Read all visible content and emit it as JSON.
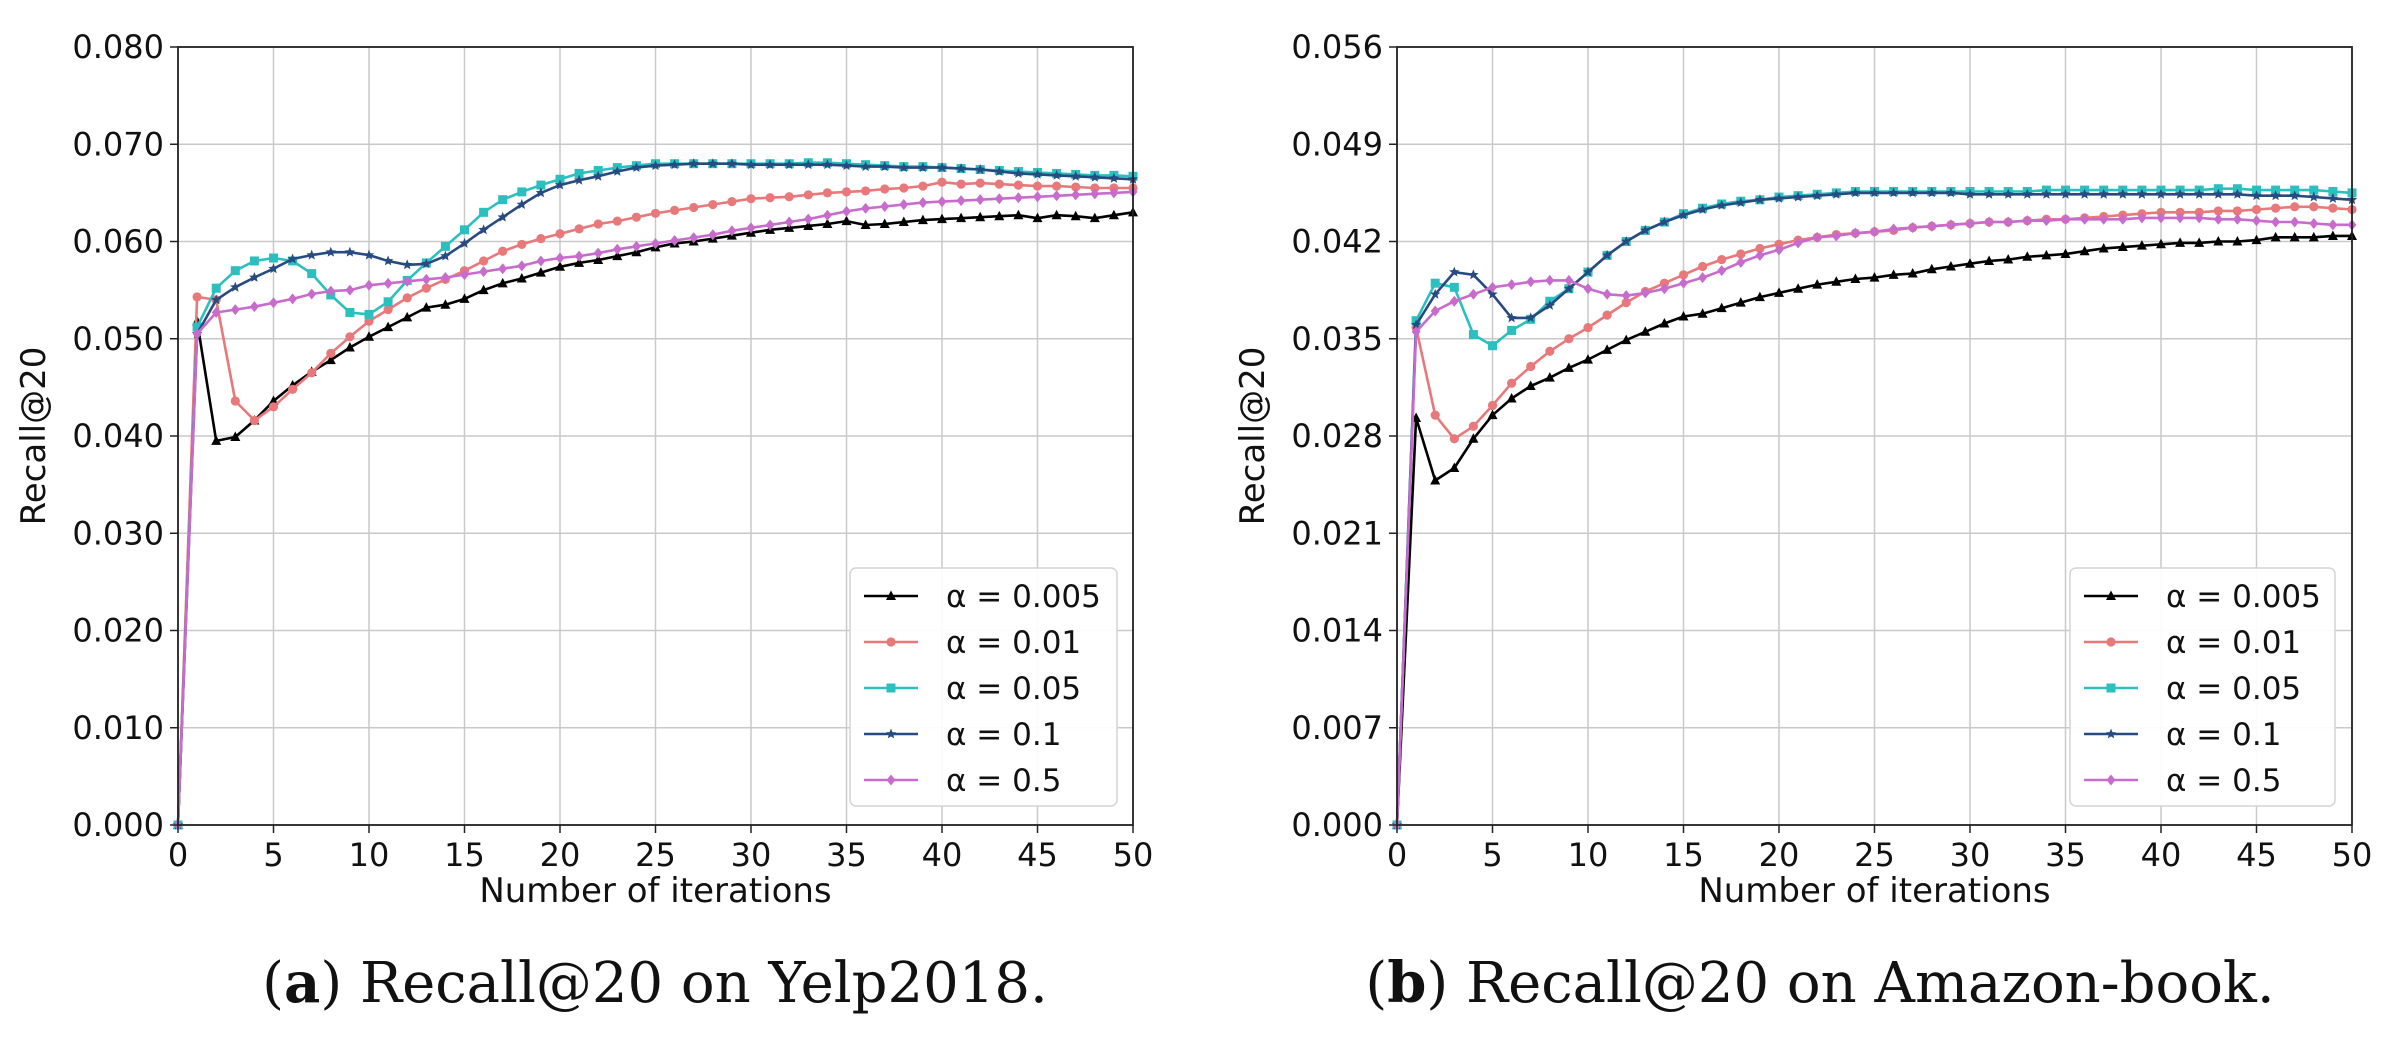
{
  "chart_data": [
    {
      "type": "line",
      "caption_letter": "a",
      "caption_text": "Recall@20 on Yelp2018.",
      "xlabel": "Number of iterations",
      "ylabel": "Recall@20",
      "xlim": [
        0,
        50
      ],
      "ylim": [
        0,
        0.08
      ],
      "xticks": [
        "0",
        "5",
        "10",
        "15",
        "20",
        "25",
        "30",
        "35",
        "40",
        "45",
        "50"
      ],
      "yticks": [
        "0.000",
        "0.010",
        "0.020",
        "0.030",
        "0.040",
        "0.050",
        "0.060",
        "0.070",
        "0.080"
      ],
      "grid": true,
      "legend_position": "lower-right",
      "series": [
        {
          "name": "α = 0.005",
          "color": "#000000",
          "marker": "triangle",
          "values": [
            0.0,
            0.0518,
            0.0395,
            0.0399,
            0.0416,
            0.0436,
            0.0452,
            0.0466,
            0.0478,
            0.0491,
            0.0502,
            0.0512,
            0.0522,
            0.0532,
            0.0535,
            0.0541,
            0.055,
            0.0557,
            0.0562,
            0.0568,
            0.0574,
            0.0578,
            0.0581,
            0.0585,
            0.0589,
            0.0594,
            0.0598,
            0.06,
            0.0603,
            0.0606,
            0.0609,
            0.0612,
            0.0614,
            0.0616,
            0.0618,
            0.0621,
            0.0617,
            0.0618,
            0.062,
            0.0622,
            0.0623,
            0.0624,
            0.0625,
            0.0626,
            0.0627,
            0.0624,
            0.0627,
            0.0626,
            0.0624,
            0.0627,
            0.063
          ]
        },
        {
          "name": "α = 0.01",
          "color": "#e8787a",
          "marker": "circle",
          "values": [
            0.0,
            0.0543,
            0.054,
            0.0436,
            0.0416,
            0.043,
            0.0448,
            0.0465,
            0.0485,
            0.0502,
            0.0518,
            0.053,
            0.0542,
            0.0552,
            0.0561,
            0.057,
            0.058,
            0.059,
            0.0597,
            0.0603,
            0.0608,
            0.0613,
            0.0618,
            0.0621,
            0.0625,
            0.0629,
            0.0632,
            0.0635,
            0.0638,
            0.0641,
            0.0644,
            0.0645,
            0.0646,
            0.0648,
            0.065,
            0.0651,
            0.0652,
            0.0654,
            0.0655,
            0.0657,
            0.0661,
            0.0659,
            0.066,
            0.0659,
            0.0658,
            0.0657,
            0.0657,
            0.0656,
            0.0655,
            0.0655,
            0.0655
          ]
        },
        {
          "name": "α = 0.05",
          "color": "#2bbfbf",
          "marker": "square",
          "values": [
            0.0,
            0.0512,
            0.0552,
            0.057,
            0.058,
            0.0583,
            0.058,
            0.0567,
            0.0545,
            0.0527,
            0.0525,
            0.0538,
            0.056,
            0.0578,
            0.0595,
            0.0612,
            0.063,
            0.0643,
            0.0651,
            0.0658,
            0.0664,
            0.067,
            0.0673,
            0.0676,
            0.0678,
            0.068,
            0.068,
            0.068,
            0.068,
            0.068,
            0.068,
            0.068,
            0.068,
            0.0681,
            0.0681,
            0.068,
            0.0679,
            0.0678,
            0.0677,
            0.0677,
            0.0676,
            0.0675,
            0.0674,
            0.0673,
            0.0672,
            0.0671,
            0.067,
            0.0669,
            0.0668,
            0.0668,
            0.0667
          ]
        },
        {
          "name": "α = 0.1",
          "color": "#274b80",
          "marker": "star",
          "values": [
            0.0,
            0.0505,
            0.054,
            0.0553,
            0.0563,
            0.0572,
            0.0582,
            0.0586,
            0.0589,
            0.0589,
            0.0586,
            0.058,
            0.0576,
            0.0577,
            0.0585,
            0.0598,
            0.0612,
            0.0625,
            0.0638,
            0.065,
            0.0658,
            0.0663,
            0.0667,
            0.0672,
            0.0676,
            0.0678,
            0.0679,
            0.068,
            0.068,
            0.068,
            0.0679,
            0.0679,
            0.0679,
            0.0679,
            0.0679,
            0.0678,
            0.0677,
            0.0677,
            0.0676,
            0.0676,
            0.0676,
            0.0675,
            0.0674,
            0.0672,
            0.067,
            0.0669,
            0.0668,
            0.0667,
            0.0666,
            0.0665,
            0.0664
          ]
        },
        {
          "name": "α = 0.5",
          "color": "#c76ccc",
          "marker": "diamond",
          "values": [
            0.0,
            0.0505,
            0.0527,
            0.053,
            0.0533,
            0.0537,
            0.0541,
            0.0546,
            0.0549,
            0.055,
            0.0555,
            0.0557,
            0.0559,
            0.0561,
            0.0563,
            0.0566,
            0.0569,
            0.0572,
            0.0575,
            0.058,
            0.0583,
            0.0585,
            0.0588,
            0.0592,
            0.0595,
            0.0598,
            0.0601,
            0.0604,
            0.0607,
            0.0611,
            0.0614,
            0.0617,
            0.062,
            0.0623,
            0.0627,
            0.0631,
            0.0634,
            0.0636,
            0.0638,
            0.064,
            0.0641,
            0.0642,
            0.0643,
            0.0644,
            0.0645,
            0.0646,
            0.0647,
            0.0648,
            0.0649,
            0.065,
            0.0651
          ]
        }
      ]
    },
    {
      "type": "line",
      "caption_letter": "b",
      "caption_text": "Recall@20 on Amazon-book.",
      "xlabel": "Number of iterations",
      "ylabel": "Recall@20",
      "xlim": [
        0,
        50
      ],
      "ylim": [
        0,
        0.056
      ],
      "xticks": [
        "0",
        "5",
        "10",
        "15",
        "20",
        "25",
        "30",
        "35",
        "40",
        "45",
        "50"
      ],
      "yticks": [
        "0.000",
        "0.007",
        "0.014",
        "0.021",
        "0.028",
        "0.035",
        "0.042",
        "0.049",
        "0.056"
      ],
      "grid": true,
      "legend_position": "lower-right",
      "series": [
        {
          "name": "α = 0.005",
          "color": "#000000",
          "marker": "triangle",
          "values": [
            0.0,
            0.0293,
            0.0248,
            0.0257,
            0.0278,
            0.0295,
            0.0307,
            0.0316,
            0.0322,
            0.0329,
            0.0335,
            0.0342,
            0.0349,
            0.0355,
            0.0361,
            0.0366,
            0.0368,
            0.0372,
            0.0376,
            0.038,
            0.0383,
            0.0386,
            0.0389,
            0.0391,
            0.0393,
            0.0394,
            0.0396,
            0.0397,
            0.04,
            0.0402,
            0.0404,
            0.0406,
            0.0407,
            0.0409,
            0.041,
            0.0411,
            0.0413,
            0.0415,
            0.0416,
            0.0417,
            0.0418,
            0.0419,
            0.0419,
            0.042,
            0.042,
            0.0421,
            0.0423,
            0.0423,
            0.0423,
            0.0424,
            0.0424
          ]
        },
        {
          "name": "α = 0.01",
          "color": "#e8787a",
          "marker": "circle",
          "values": [
            0.0,
            0.0358,
            0.0295,
            0.0278,
            0.0287,
            0.0302,
            0.0318,
            0.033,
            0.0341,
            0.035,
            0.0358,
            0.0367,
            0.0376,
            0.0384,
            0.039,
            0.0396,
            0.0402,
            0.0407,
            0.0411,
            0.0415,
            0.0418,
            0.0421,
            0.0423,
            0.0425,
            0.0426,
            0.0427,
            0.0428,
            0.043,
            0.0431,
            0.0432,
            0.0433,
            0.0434,
            0.0434,
            0.0435,
            0.0436,
            0.0436,
            0.0437,
            0.0438,
            0.0439,
            0.044,
            0.0441,
            0.0441,
            0.0441,
            0.0442,
            0.0442,
            0.0443,
            0.0444,
            0.0445,
            0.0445,
            0.0444,
            0.0443
          ]
        },
        {
          "name": "α = 0.05",
          "color": "#2bbfbf",
          "marker": "square",
          "values": [
            0.0,
            0.0363,
            0.039,
            0.0387,
            0.0353,
            0.0345,
            0.0356,
            0.0364,
            0.0377,
            0.0386,
            0.0398,
            0.041,
            0.042,
            0.0428,
            0.0434,
            0.044,
            0.0444,
            0.0447,
            0.0449,
            0.045,
            0.0452,
            0.0453,
            0.0454,
            0.0455,
            0.0456,
            0.0456,
            0.0456,
            0.0456,
            0.0456,
            0.0456,
            0.0456,
            0.0456,
            0.0456,
            0.0456,
            0.0457,
            0.0457,
            0.0457,
            0.0457,
            0.0457,
            0.0457,
            0.0457,
            0.0457,
            0.0457,
            0.0458,
            0.0458,
            0.0457,
            0.0457,
            0.0457,
            0.0457,
            0.0456,
            0.0455
          ]
        },
        {
          "name": "α = 0.1",
          "color": "#274b80",
          "marker": "star",
          "values": [
            0.0,
            0.036,
            0.0382,
            0.0398,
            0.0396,
            0.0382,
            0.0365,
            0.0365,
            0.0374,
            0.0386,
            0.0398,
            0.041,
            0.042,
            0.0428,
            0.0434,
            0.0439,
            0.0443,
            0.0446,
            0.0448,
            0.045,
            0.0451,
            0.0452,
            0.0453,
            0.0454,
            0.0455,
            0.0455,
            0.0455,
            0.0455,
            0.0455,
            0.0455,
            0.0454,
            0.0454,
            0.0454,
            0.0454,
            0.0454,
            0.0454,
            0.0454,
            0.0454,
            0.0454,
            0.0454,
            0.0454,
            0.0454,
            0.0454,
            0.0454,
            0.0454,
            0.0453,
            0.0453,
            0.0453,
            0.0452,
            0.0451,
            0.045
          ]
        },
        {
          "name": "α = 0.5",
          "color": "#c76ccc",
          "marker": "diamond",
          "values": [
            0.0,
            0.0355,
            0.037,
            0.0377,
            0.0382,
            0.0387,
            0.0389,
            0.0391,
            0.0392,
            0.0392,
            0.0386,
            0.0382,
            0.0381,
            0.0383,
            0.0386,
            0.039,
            0.0394,
            0.0399,
            0.0405,
            0.041,
            0.0414,
            0.0419,
            0.0423,
            0.0424,
            0.0426,
            0.0427,
            0.0429,
            0.043,
            0.0431,
            0.0432,
            0.0433,
            0.0434,
            0.0434,
            0.0435,
            0.0435,
            0.0436,
            0.0436,
            0.0436,
            0.0436,
            0.0437,
            0.0437,
            0.0437,
            0.0437,
            0.0436,
            0.0436,
            0.0435,
            0.0434,
            0.0434,
            0.0433,
            0.0432,
            0.0432
          ]
        }
      ]
    }
  ]
}
